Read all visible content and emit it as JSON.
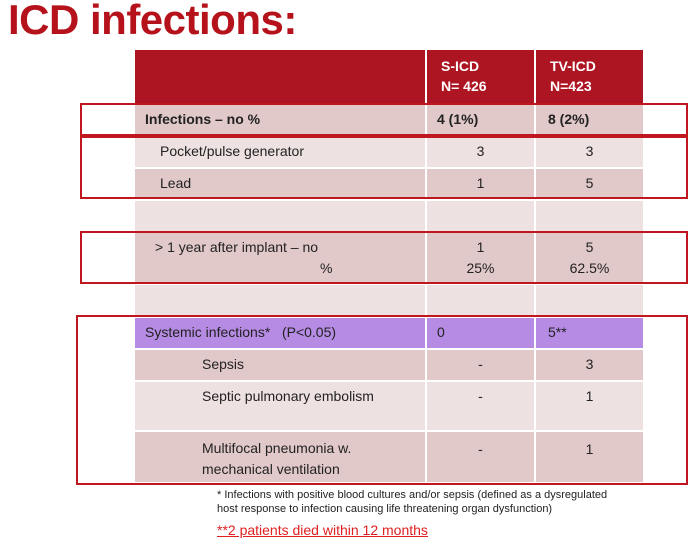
{
  "title": "ICD infections:",
  "header": {
    "col1": {
      "line1": "S-ICD",
      "line2": "N= 426"
    },
    "col2": {
      "line1": "TV-ICD",
      "line2": "N=423"
    }
  },
  "rows": {
    "infections": {
      "label": "Infections – no %",
      "sicd": "4 (1%)",
      "tvicd": "8 (2%)"
    },
    "pocket": {
      "label": "Pocket/pulse generator",
      "sicd": "3",
      "tvicd": "3"
    },
    "lead": {
      "label": "Lead",
      "sicd": "1",
      "tvicd": "5"
    },
    "late": {
      "label_line1": "> 1 year after implant – no",
      "label_line2": "%",
      "sicd_1": "1",
      "sicd_2": "25%",
      "tvicd_1": "5",
      "tvicd_2": "62.5%"
    },
    "systemic": {
      "label": "Systemic infections*   (P<0.05)",
      "sicd": "0",
      "tvicd": "5**"
    },
    "sepsis": {
      "label": "Sepsis",
      "sicd": "-",
      "tvicd": "3"
    },
    "embolism": {
      "label": "Septic pulmonary embolism",
      "sicd": "-",
      "tvicd": "1"
    },
    "pneumonia": {
      "label_line1": "Multifocal pneumonia w.",
      "label_line2": "mechanical ventilation",
      "sicd": "-",
      "tvicd": "1"
    }
  },
  "footnote": {
    "line1": "* Infections with positive blood cultures and/or sepsis (defined as a dysregulated",
    "line2": "host response to infection causing life threatening organ dysfunction)"
  },
  "died_note": "**2 patients died within 12 months",
  "colors": {
    "title": "#b5121b",
    "header": "#ad1522",
    "row_dark": "#e1c8c9",
    "row_light": "#eee1e1",
    "purple": "#b58be3",
    "outline": "#c0161f",
    "note": "#e02020"
  }
}
